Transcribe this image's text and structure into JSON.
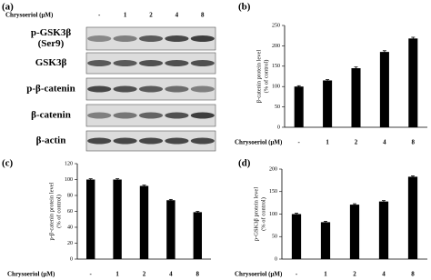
{
  "blot": {
    "label": "(a)",
    "treatment_label": "Chrysoeriol (μM)",
    "lanes": [
      "-",
      "1",
      "2",
      "4",
      "8"
    ],
    "rows": [
      [
        "p-GSK3β",
        "(Ser9)"
      ],
      [
        "GSK3β"
      ],
      [
        "p-β-catenin"
      ],
      [
        "β-catenin"
      ],
      [
        "β-actin"
      ]
    ]
  },
  "chart_data": [
    {
      "type": "bar",
      "label": "(b)",
      "y_label": [
        "β-catenin protein level",
        "(% of control)"
      ],
      "x_label": "Chrysoeriol (μM)",
      "categories": [
        "-",
        "1",
        "2",
        "4",
        "8"
      ],
      "values": [
        100,
        115,
        145,
        185,
        218
      ],
      "errors": [
        2,
        2,
        3,
        3,
        3
      ],
      "color": "#000000",
      "ylim": [
        0,
        250
      ],
      "yticks": [
        0,
        50,
        100,
        150,
        200,
        250
      ]
    },
    {
      "type": "bar",
      "label": "(c)",
      "y_label": [
        "p-β-catenin protein level",
        "(% of control)"
      ],
      "x_label": "Chrysoeriol (μM)",
      "categories": [
        "-",
        "1",
        "2",
        "4",
        "8"
      ],
      "values": [
        100,
        100,
        92,
        74,
        59
      ],
      "errors": [
        1,
        1,
        1,
        1,
        1
      ],
      "color": "#000000",
      "ylim": [
        0,
        120
      ],
      "yticks": [
        0,
        20,
        40,
        60,
        80,
        100,
        120
      ]
    },
    {
      "type": "bar",
      "label": "(d)",
      "y_label": [
        "p-GSK3β protein level",
        "(% of control)"
      ],
      "x_label": "Chrysoeriol (μM)",
      "categories": [
        "-",
        "1",
        "2",
        "4",
        "8"
      ],
      "values": [
        100,
        82,
        121,
        128,
        183
      ],
      "errors": [
        2,
        2,
        2,
        2,
        2
      ],
      "color": "#000000",
      "ylim": [
        0,
        200
      ],
      "yticks": [
        0,
        50,
        100,
        150,
        200
      ]
    }
  ]
}
